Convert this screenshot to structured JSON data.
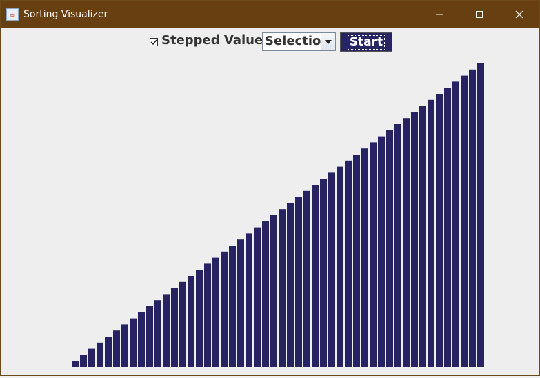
{
  "window": {
    "title": "Sorting Visualizer",
    "bar_color": "#272261",
    "titlebar_color": "#683f10"
  },
  "toolbar": {
    "stepped_label": "Stepped Values",
    "stepped_checked": true,
    "algorithm_selected": "Selection",
    "start_label": "Start"
  },
  "chart_data": {
    "type": "bar",
    "values": [
      1,
      2,
      3,
      4,
      5,
      6,
      7,
      8,
      9,
      10,
      11,
      12,
      13,
      14,
      15,
      16,
      17,
      18,
      19,
      20,
      21,
      22,
      23,
      24,
      25,
      26,
      27,
      28,
      29,
      30,
      31,
      32,
      33,
      34,
      35,
      36,
      37,
      38,
      39,
      40,
      41,
      42,
      43,
      44,
      45,
      46,
      47,
      48,
      49,
      50
    ],
    "title": "",
    "xlabel": "",
    "ylabel": ""
  }
}
